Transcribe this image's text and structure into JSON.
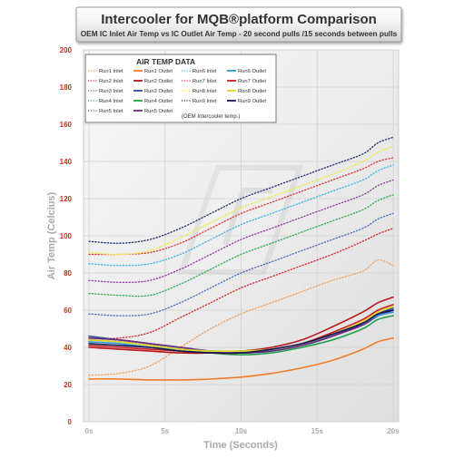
{
  "chart_data": {
    "type": "line",
    "title": "Intercooler for MQB®platform Comparison",
    "subtitle": "OEM IC Inlet Air Temp vs IC Outlet Air Temp - 20 second pulls /15 seconds between pulls",
    "xlabel": "Time (Seconds)",
    "ylabel": "Air Temp (Celcius)",
    "xlim": [
      0,
      20
    ],
    "ylim": [
      0,
      200
    ],
    "xticks": [
      {
        "v": 0,
        "label": "0s"
      },
      {
        "v": 5,
        "label": "5s"
      },
      {
        "v": 10,
        "label": "10s"
      },
      {
        "v": 15,
        "label": "15s"
      },
      {
        "v": 20,
        "label": "20s"
      }
    ],
    "yticks": [
      0,
      20,
      40,
      60,
      80,
      100,
      120,
      140,
      160,
      180,
      200
    ],
    "grid": true,
    "legend": {
      "title": "AIR TEMP DATA",
      "placement": "top-left",
      "note": "(OEM Intercooler temp.)"
    },
    "x": [
      0,
      2,
      4,
      6,
      8,
      10,
      12,
      14,
      16,
      18,
      19,
      20
    ],
    "series": [
      {
        "name": "Run1 Inlet",
        "style": "dotted",
        "color": "#f5a05a",
        "values": [
          25,
          26,
          30,
          40,
          50,
          58,
          64,
          70,
          76,
          81,
          87,
          84
        ]
      },
      {
        "name": "Run1 Outlet",
        "style": "solid",
        "color": "#f07d2a",
        "values": [
          23,
          23,
          22.5,
          22.5,
          23,
          24,
          26,
          29,
          33,
          39,
          43,
          45
        ]
      },
      {
        "name": "Run2 Inlet",
        "style": "dotted",
        "color": "#d7262e",
        "values": [
          45,
          45,
          48,
          56,
          64,
          72,
          78,
          84,
          90,
          97,
          101,
          104
        ]
      },
      {
        "name": "Run2 Outlet",
        "style": "solid",
        "color": "#b8161c",
        "values": [
          40,
          39,
          38,
          37,
          37,
          38,
          40,
          44,
          51,
          59,
          64,
          67
        ]
      },
      {
        "name": "Run3 Inlet",
        "style": "dotted",
        "color": "#4a6fb5",
        "values": [
          58,
          57,
          58,
          64,
          72,
          80,
          86,
          92,
          98,
          104,
          109,
          112
        ]
      },
      {
        "name": "Run3 Outlet",
        "style": "solid",
        "color": "#2f4f99",
        "values": [
          46,
          44,
          42,
          40,
          38,
          37,
          38,
          41,
          46,
          53,
          58,
          61
        ]
      },
      {
        "name": "Run4 Inlet",
        "style": "dotted",
        "color": "#2fae4e",
        "values": [
          69,
          68,
          68,
          74,
          82,
          90,
          96,
          102,
          108,
          114,
          119,
          122
        ]
      },
      {
        "name": "Run4 Outlet",
        "style": "solid",
        "color": "#22a04a",
        "values": [
          44,
          43,
          41,
          39,
          37,
          36,
          37,
          40,
          44,
          50,
          55,
          57
        ]
      },
      {
        "name": "Run5 Inlet",
        "style": "dotted",
        "color": "#8f3f9e",
        "values": [
          76,
          75,
          76,
          82,
          90,
          98,
          104,
          110,
          116,
          122,
          127,
          130
        ]
      },
      {
        "name": "Run5 Outlet",
        "style": "solid",
        "color": "#6b2b80",
        "values": [
          45,
          44,
          42,
          40,
          38,
          37,
          38,
          41,
          46,
          52,
          57,
          60
        ]
      },
      {
        "name": "Run6 Inlet",
        "style": "dotted",
        "color": "#3fb4e8",
        "values": [
          85,
          84,
          85,
          90,
          98,
          106,
          112,
          118,
          124,
          130,
          135,
          138
        ]
      },
      {
        "name": "Run6 Outlet",
        "style": "solid",
        "color": "#2c95d6",
        "values": [
          43,
          42,
          40,
          39,
          38,
          38,
          39,
          42,
          47,
          53,
          57,
          59
        ]
      },
      {
        "name": "Run7 Inlet",
        "style": "dotted",
        "color": "#e3343a",
        "values": [
          90,
          90,
          91,
          96,
          104,
          112,
          118,
          124,
          130,
          136,
          140,
          142
        ]
      },
      {
        "name": "Run7 Outlet",
        "style": "solid",
        "color": "#c82027",
        "values": [
          41,
          40,
          39,
          38,
          37,
          37,
          39,
          42,
          48,
          55,
          60,
          63
        ]
      },
      {
        "name": "Run8 Inlet",
        "style": "dotted",
        "color": "#f2ea3a",
        "values": [
          91,
          90,
          92,
          99,
          107,
          115,
          121,
          127,
          133,
          140,
          145,
          148
        ]
      },
      {
        "name": "Run8 Outlet",
        "style": "solid",
        "color": "#e8d520",
        "values": [
          44,
          43,
          41,
          39,
          38,
          38,
          39,
          42,
          47,
          54,
          59,
          62
        ]
      },
      {
        "name": "Run9 Inlet",
        "style": "dotted",
        "color": "#1f2d6b",
        "values": [
          97,
          96,
          98,
          104,
          112,
          120,
          126,
          132,
          138,
          144,
          150,
          153
        ]
      },
      {
        "name": "Run9 Outlet",
        "style": "solid",
        "color": "#0f1b52",
        "values": [
          42,
          41,
          40,
          38,
          37,
          37,
          39,
          42,
          47,
          53,
          58,
          60
        ]
      }
    ]
  }
}
